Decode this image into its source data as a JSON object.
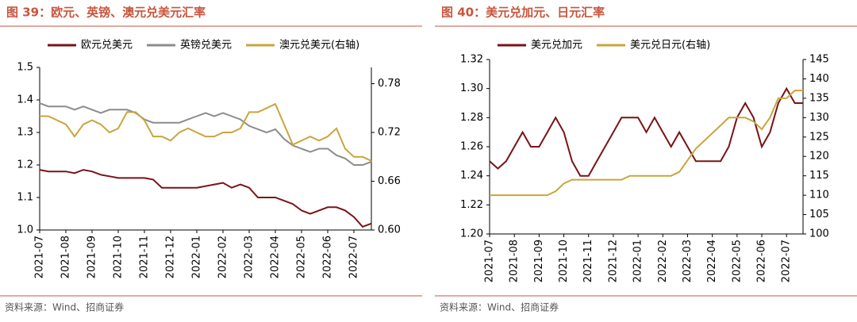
{
  "chart_data": [
    {
      "type": "line",
      "title": "图 39：欧元、英镑、澳元兑美元汇率",
      "source": "资料来源：Wind、招商证券",
      "categories": [
        "2021-07",
        null,
        null,
        "2021-08",
        null,
        null,
        "2021-09",
        null,
        null,
        "2021-10",
        null,
        null,
        "2021-11",
        null,
        null,
        "2021-12",
        null,
        null,
        "2022-01",
        null,
        null,
        "2022-02",
        null,
        null,
        "2022-03",
        null,
        null,
        "2022-04",
        null,
        null,
        "2022-05",
        null,
        null,
        "2022-06",
        null,
        null,
        "2022-07",
        null,
        null
      ],
      "ylim": [
        1.0,
        1.5
      ],
      "yticks": [
        {
          "value": 1.0,
          "label": "1.0"
        },
        1.1,
        1.2,
        1.3,
        1.4,
        1.5
      ],
      "y2lim": [
        0.6,
        0.8
      ],
      "y2ticks": [
        {
          "value": 0.6,
          "label": "0.60"
        },
        0.66,
        0.72,
        0.78
      ],
      "grid": false,
      "legend": "top",
      "series": [
        {
          "name": "欧元兑美元",
          "color": "#7a1316",
          "values": [
            1.185,
            1.18,
            1.18,
            1.18,
            1.175,
            1.185,
            1.18,
            1.17,
            1.165,
            1.16,
            1.16,
            1.16,
            1.16,
            1.155,
            1.13,
            1.13,
            1.13,
            1.13,
            1.13,
            1.135,
            1.14,
            1.145,
            1.13,
            1.14,
            1.13,
            1.1,
            1.1,
            1.1,
            1.09,
            1.08,
            1.06,
            1.05,
            1.06,
            1.07,
            1.07,
            1.06,
            1.04,
            1.01,
            1.02
          ]
        },
        {
          "name": "英镑兑美元",
          "color": "#8c8c8c",
          "values": [
            1.39,
            1.38,
            1.38,
            1.38,
            1.37,
            1.38,
            1.37,
            1.36,
            1.37,
            1.37,
            1.37,
            1.36,
            1.34,
            1.33,
            1.33,
            1.33,
            1.33,
            1.34,
            1.35,
            1.36,
            1.35,
            1.36,
            1.35,
            1.34,
            1.32,
            1.31,
            1.3,
            1.31,
            1.28,
            1.26,
            1.25,
            1.24,
            1.25,
            1.25,
            1.23,
            1.22,
            1.2,
            1.2,
            1.21
          ]
        },
        {
          "name": "澳元兑美元(右轴)",
          "color": "#c9a53e",
          "axis": "y2",
          "values": [
            0.74,
            0.74,
            0.735,
            0.73,
            0.715,
            0.73,
            0.735,
            0.73,
            0.72,
            0.725,
            0.745,
            0.745,
            0.735,
            0.715,
            0.715,
            0.71,
            0.72,
            0.725,
            0.72,
            0.715,
            0.715,
            0.72,
            0.72,
            0.725,
            0.745,
            0.745,
            0.75,
            0.755,
            0.73,
            0.705,
            0.71,
            0.715,
            0.71,
            0.715,
            0.725,
            0.7,
            0.69,
            0.69,
            0.685
          ]
        }
      ]
    },
    {
      "type": "line",
      "title": "图 40：美元兑加元、日元汇率",
      "source": "资料来源：Wind、招商证券",
      "categories": [
        "2021-07",
        null,
        null,
        "2021-08",
        null,
        null,
        "2021-09",
        null,
        null,
        "2021-10",
        null,
        null,
        "2021-11",
        null,
        null,
        "2021-12",
        null,
        null,
        "2022-01",
        null,
        null,
        "2022-02",
        null,
        null,
        "2022-03",
        null,
        null,
        "2022-04",
        null,
        null,
        "2022-05",
        null,
        null,
        "2022-06",
        null,
        null,
        "2022-07",
        null,
        null
      ],
      "ylim": [
        1.2,
        1.32
      ],
      "yticks": [
        {
          "value": 1.2,
          "label": "1.20"
        },
        1.22,
        1.24,
        1.26,
        1.28,
        {
          "value": 1.3,
          "label": "1.30"
        },
        1.32
      ],
      "y2lim": [
        100,
        145
      ],
      "y2ticks": [
        100,
        105,
        110,
        115,
        120,
        125,
        130,
        135,
        140,
        145
      ],
      "grid": false,
      "legend": "top",
      "series": [
        {
          "name": "美元兑加元",
          "color": "#7a1316",
          "values": [
            1.25,
            1.245,
            1.25,
            1.26,
            1.27,
            1.26,
            1.26,
            1.27,
            1.28,
            1.27,
            1.25,
            1.24,
            1.24,
            1.25,
            1.26,
            1.27,
            1.28,
            1.28,
            1.28,
            1.27,
            1.28,
            1.27,
            1.26,
            1.27,
            1.26,
            1.25,
            1.25,
            1.25,
            1.25,
            1.26,
            1.28,
            1.29,
            1.28,
            1.26,
            1.27,
            1.29,
            1.3,
            1.29,
            1.29
          ]
        },
        {
          "name": "美元兑日元(右轴)",
          "color": "#c9a53e",
          "axis": "y2",
          "values": [
            110,
            110,
            110,
            110,
            110,
            110,
            110,
            110,
            111,
            113,
            114,
            114,
            114,
            114,
            114,
            114,
            114,
            115,
            115,
            115,
            115,
            115,
            115,
            116,
            119,
            122,
            124,
            126,
            128,
            130,
            130,
            130,
            129,
            127,
            130,
            135,
            135,
            137,
            137
          ]
        }
      ]
    }
  ]
}
